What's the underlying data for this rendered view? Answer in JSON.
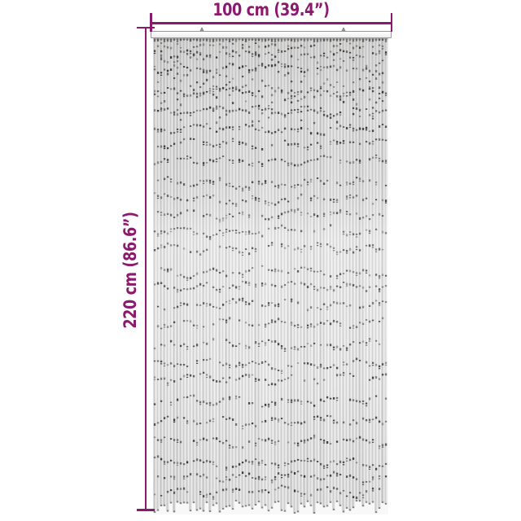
{
  "diagram": {
    "type": "product-dimension-diagram",
    "width_dimension": {
      "label": "100 cm (39.4”)",
      "value_cm": 100,
      "value_inch": 39.4
    },
    "height_dimension": {
      "label": "220 cm (86.6”)",
      "value_cm": 220,
      "value_inch": 86.6
    },
    "colors": {
      "accent": "#8b1a6e",
      "background": "#ffffff",
      "rail_fill": "#fbfbfb",
      "rail_border": "#9a9a9a",
      "strand_light": "#d6d6d6",
      "bead_gap_dark": "#2a2624"
    }
  }
}
